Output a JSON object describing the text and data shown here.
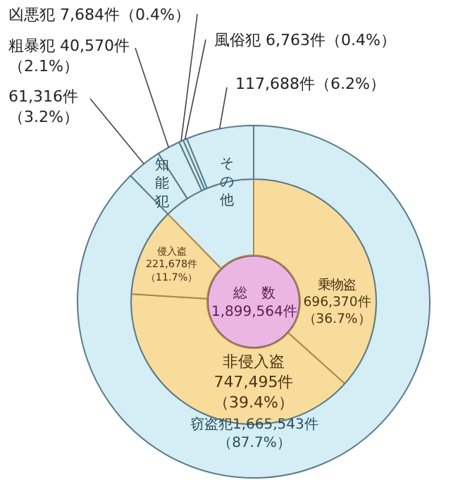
{
  "chart_data": [
    {
      "type": "donut",
      "categories": [
        "窃盗犯",
        "知能犯",
        "粗暴犯",
        "凶悪犯",
        "風俗犯",
        "その他"
      ],
      "values": [
        1665543,
        61316,
        40570,
        7684,
        6763,
        117688
      ],
      "colors": [
        "#d5edf4",
        "#d5edf4",
        "#d5edf4",
        "#d5edf4",
        "#d5edf4",
        "#d5edf4"
      ],
      "value_labels": [
        "1,665,543件（87.7%）",
        "61,316件（3.2%）",
        "40,570件（2.1%）",
        "7,684件（0.4%）",
        "6,763件（0.4%）",
        "117,688件（6.2%）"
      ]
    },
    {
      "type": "donut",
      "categories": [
        "乗物盗",
        "非侵入盗",
        "侵入盗",
        null
      ],
      "values": [
        696370,
        747495,
        221678,
        234021
      ],
      "colors": [
        "#f8dc9c",
        "#f8dc9c",
        "#f8dc9c",
        "#d5edf4"
      ],
      "value_labels": [
        "696,370件（36.7%）",
        "747,495件（39.4%）",
        "221,678件（11.7%）",
        null
      ],
      "annotations": [
        "総　数",
        "1,899,564件"
      ]
    }
  ]
}
